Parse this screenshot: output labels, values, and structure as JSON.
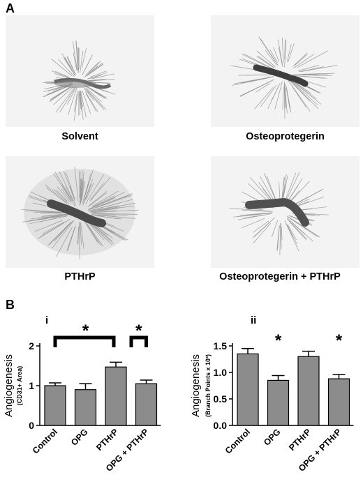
{
  "panel_a": {
    "letter": "A",
    "images": [
      {
        "caption": "Solvent"
      },
      {
        "caption": "Osteoprotegerin"
      },
      {
        "caption": "PTHrP"
      },
      {
        "caption": "Osteoprotegerin + PTHrP"
      }
    ]
  },
  "panel_b": {
    "letter": "B",
    "colors": {
      "bar": "#8c8c8c",
      "axis": "#000000"
    }
  },
  "chart_data": [
    {
      "type": "bar",
      "panel_label": "i",
      "categories": [
        "Control",
        "OPG",
        "PTHrP",
        "OPG + PTHrP"
      ],
      "values": [
        1.0,
        0.9,
        1.47,
        1.05
      ],
      "errors": [
        0.07,
        0.15,
        0.12,
        0.09
      ],
      "ylabel": "Angiogenesis",
      "ylabel_sub": "(CD31+ Area)",
      "ylim": [
        0,
        2
      ],
      "yticks": [
        "0",
        "1",
        "2"
      ],
      "significance": [
        {
          "from": 0,
          "to": 2,
          "label": "*"
        },
        {
          "from": 2,
          "to": 3,
          "label": "*"
        }
      ]
    },
    {
      "type": "bar",
      "panel_label": "ii",
      "categories": [
        "Control",
        "OPG",
        "PTHrP",
        "OPG + PTHrP"
      ],
      "values": [
        1.35,
        0.85,
        1.3,
        0.88
      ],
      "errors": [
        0.1,
        0.09,
        0.1,
        0.08
      ],
      "ylabel": "Angiogenesis",
      "ylabel_sub": "(Branch Points x 10³)",
      "ylim": [
        0,
        1.5
      ],
      "yticks": [
        "0.0",
        "0.5",
        "1.0",
        "1.5"
      ],
      "stars": [
        {
          "index": 1,
          "label": "*"
        },
        {
          "index": 3,
          "label": "*"
        }
      ]
    }
  ]
}
